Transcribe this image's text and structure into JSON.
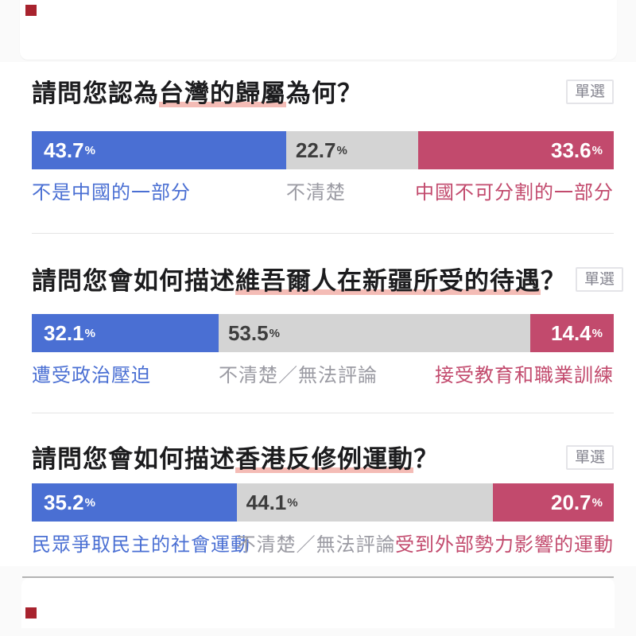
{
  "page": {
    "background": "#fafafa",
    "card_background": "#ffffff"
  },
  "colors": {
    "blue": "#4a6fd3",
    "gray": "#d4d4d4",
    "rose": "#c24a6d",
    "highlight": "#f4bcb6",
    "label_gray": "#9b9ba3",
    "pct_dark": "#3d3d3d",
    "badge_text": "#84848f",
    "badge_border": "#e4e4e8",
    "logo_red": "#a8232e",
    "divider": "#e4e4e4"
  },
  "percent_sign": "%",
  "questions": [
    {
      "title_prefix": "請問您認為",
      "title_highlight": "台灣的歸屬",
      "title_suffix": "為何？",
      "badge": "單選",
      "segments": [
        {
          "value": "43.7",
          "pct": 43.7,
          "label": "不是中國的一部分",
          "color_key": "blue"
        },
        {
          "value": "22.7",
          "pct": 22.7,
          "label": "不清楚",
          "color_key": "gray"
        },
        {
          "value": "33.6",
          "pct": 33.6,
          "label": "中國不可分割的一部分",
          "color_key": "rose"
        }
      ]
    },
    {
      "title_prefix": "請問您會如何描述",
      "title_highlight": "維吾爾人在新疆所受的待遇",
      "title_suffix": "？",
      "badge": "單選",
      "segments": [
        {
          "value": "32.1",
          "pct": 32.1,
          "label": "遭受政治壓迫",
          "color_key": "blue"
        },
        {
          "value": "53.5",
          "pct": 53.5,
          "label": "不清楚／無法評論",
          "color_key": "gray"
        },
        {
          "value": "14.4",
          "pct": 14.4,
          "label": "接受教育和職業訓練",
          "color_key": "rose"
        }
      ]
    },
    {
      "title_prefix": "請問您會如何描述",
      "title_highlight": "香港反修例運動",
      "title_suffix": "？",
      "badge": "單選",
      "segments": [
        {
          "value": "35.2",
          "pct": 35.2,
          "label": "民眾爭取民主的社會運動",
          "color_key": "blue"
        },
        {
          "value": "44.1",
          "pct": 44.1,
          "label": "不清楚／無法評論",
          "color_key": "gray"
        },
        {
          "value": "20.7",
          "pct": 20.7,
          "label": "受到外部勢力影響的運動",
          "color_key": "rose"
        }
      ]
    }
  ],
  "chart_data": [
    {
      "type": "bar",
      "stacked": true,
      "orientation": "horizontal",
      "title": "請問您認為台灣的歸屬為何？",
      "categories": [
        "不是中國的一部分",
        "不清楚",
        "中國不可分割的一部分"
      ],
      "values": [
        43.7,
        22.7,
        33.6
      ],
      "unit": "%",
      "xlim": [
        0,
        100
      ],
      "colors": [
        "#4a6fd3",
        "#d4d4d4",
        "#c24a6d"
      ],
      "legend_position": "below-bar"
    },
    {
      "type": "bar",
      "stacked": true,
      "orientation": "horizontal",
      "title": "請問您會如何描述維吾爾人在新疆所受的待遇？",
      "categories": [
        "遭受政治壓迫",
        "不清楚／無法評論",
        "接受教育和職業訓練"
      ],
      "values": [
        32.1,
        53.5,
        14.4
      ],
      "unit": "%",
      "xlim": [
        0,
        100
      ],
      "colors": [
        "#4a6fd3",
        "#d4d4d4",
        "#c24a6d"
      ],
      "legend_position": "below-bar"
    },
    {
      "type": "bar",
      "stacked": true,
      "orientation": "horizontal",
      "title": "請問您會如何描述香港反修例運動？",
      "categories": [
        "民眾爭取民主的社會運動",
        "不清楚／無法評論",
        "受到外部勢力影響的運動"
      ],
      "values": [
        35.2,
        44.1,
        20.7
      ],
      "unit": "%",
      "xlim": [
        0,
        100
      ],
      "colors": [
        "#4a6fd3",
        "#d4d4d4",
        "#c24a6d"
      ],
      "legend_position": "below-bar"
    }
  ]
}
